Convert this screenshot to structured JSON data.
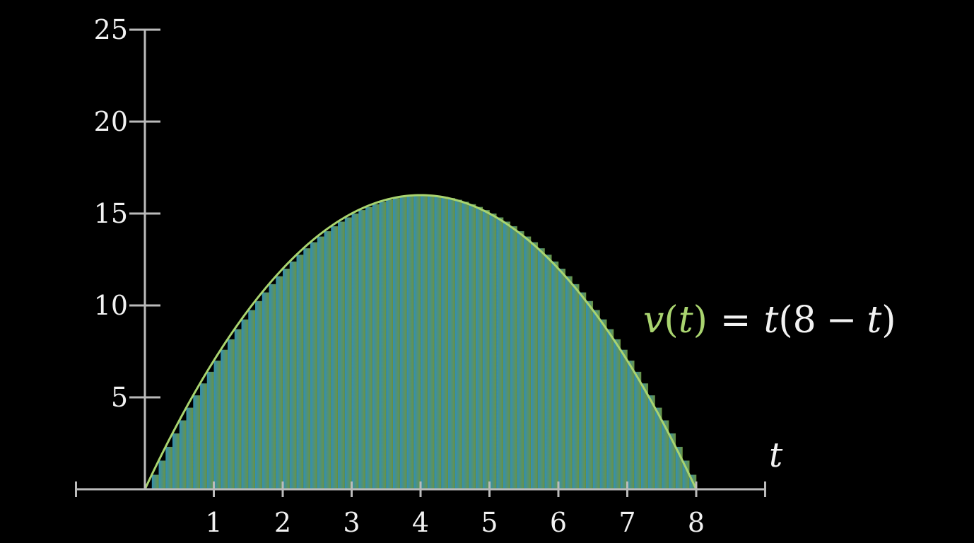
{
  "chart_data": {
    "type": "area",
    "title": "",
    "function": "v(t) = t(8 - t)",
    "x_variable": "t",
    "xlim": [
      -1,
      9
    ],
    "ylim": [
      0,
      25
    ],
    "xticks": [
      1,
      2,
      3,
      4,
      5,
      6,
      7,
      8
    ],
    "yticks": [
      5,
      10,
      15,
      20,
      25
    ],
    "grid": false,
    "curve": {
      "x": [
        0,
        0.5,
        1,
        1.5,
        2,
        2.5,
        3,
        3.5,
        4,
        4.5,
        5,
        5.5,
        6,
        6.5,
        7,
        7.5,
        8
      ],
      "y": [
        0,
        3.75,
        7,
        9.75,
        12,
        13.75,
        15,
        15.75,
        16,
        15.75,
        15,
        13.75,
        12,
        9.75,
        7,
        3.75,
        0
      ]
    },
    "riemann": {
      "start": 0,
      "end": 8,
      "dt": 0.1,
      "rule": "left"
    },
    "colors": {
      "curve": "#a9d46f",
      "fill_left": "#3aa8d6",
      "fill_right": "#7fae4c",
      "axis": "#bbbbbb",
      "text": "#f2f2f2"
    }
  },
  "formula": {
    "fn_name": "v",
    "open_paren": "(",
    "arg": "t",
    "close_paren": ")",
    "equals": "=",
    "rhs_var": "t",
    "rhs_open": "(8",
    "minus": "−",
    "rhs_var2": "t",
    "rhs_close": ")"
  }
}
